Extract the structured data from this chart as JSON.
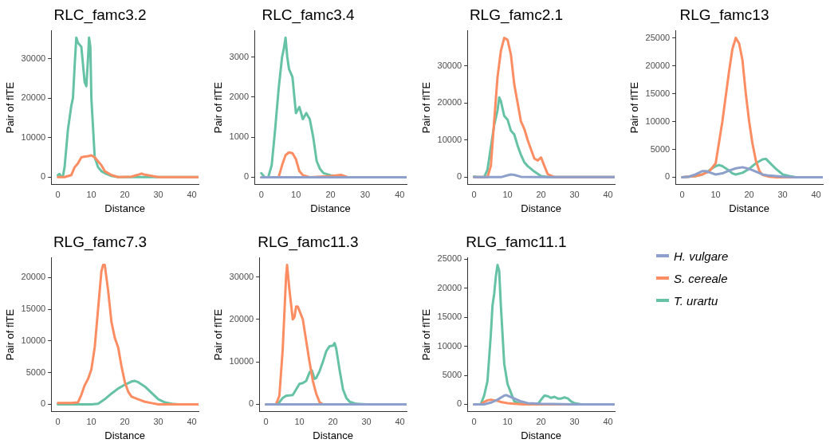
{
  "chart_data": [
    {
      "type": "line",
      "title": "RLC_famc3.2",
      "xlabel": "Distance",
      "ylabel": "Pair of flTE",
      "xlim": [
        -2,
        42
      ],
      "xticks": [
        0,
        10,
        20,
        30,
        40
      ],
      "ylim": [
        -1800,
        37000
      ],
      "yticks": [
        0,
        10000,
        20000,
        30000
      ],
      "grid": false,
      "legend": false,
      "series": [
        {
          "color": "#fc8d62",
          "x": [
            0,
            2,
            4,
            5,
            6,
            7,
            8,
            9,
            10,
            11,
            12,
            13,
            14,
            16,
            18,
            22,
            24,
            25,
            26,
            28,
            30,
            42
          ],
          "values": [
            0,
            0,
            500,
            2500,
            3500,
            5000,
            5200,
            5300,
            5500,
            5000,
            4000,
            3000,
            1500,
            500,
            0,
            100,
            600,
            900,
            600,
            300,
            0,
            0
          ]
        },
        {
          "color": "#66c2a5",
          "x": [
            0,
            0.5,
            1,
            1.5,
            2,
            3,
            4,
            4.5,
            5,
            5.5,
            6,
            7,
            8,
            8.5,
            9,
            9.3,
            9.7,
            10,
            11,
            12,
            13,
            14,
            16,
            18,
            20,
            30,
            42
          ],
          "values": [
            500,
            800,
            100,
            200,
            2500,
            12000,
            18000,
            20000,
            28000,
            35300,
            34000,
            33000,
            24000,
            23000,
            30000,
            35300,
            33000,
            20000,
            5000,
            2500,
            1500,
            1000,
            300,
            0,
            0,
            0,
            0
          ]
        }
      ]
    },
    {
      "type": "line",
      "title": "RLC_famc3.4",
      "xlabel": "Distance",
      "ylabel": "Pair of flTE",
      "xlim": [
        -2,
        42
      ],
      "xticks": [
        0,
        10,
        20,
        30,
        40
      ],
      "ylim": [
        -175,
        3650
      ],
      "yticks": [
        0,
        1000,
        2000,
        3000
      ],
      "grid": false,
      "legend": false,
      "series": [
        {
          "color": "#8da0cb",
          "x": [
            0,
            10,
            20,
            30,
            42
          ],
          "values": [
            0,
            0,
            0,
            0,
            0
          ]
        },
        {
          "color": "#fc8d62",
          "x": [
            0,
            5,
            6,
            7,
            8,
            9,
            10,
            11,
            12,
            14,
            20,
            23,
            25,
            42
          ],
          "values": [
            0,
            0,
            300,
            550,
            620,
            600,
            450,
            150,
            50,
            0,
            30,
            60,
            0,
            0
          ]
        },
        {
          "color": "#66c2a5",
          "x": [
            0,
            1,
            2,
            3,
            4,
            5,
            6,
            6.5,
            7,
            7.5,
            8,
            9,
            10,
            11,
            12,
            13,
            14,
            15,
            16,
            17,
            18,
            20,
            22,
            25,
            42
          ],
          "values": [
            100,
            0,
            0,
            300,
            1200,
            2200,
            3000,
            3200,
            3480,
            3000,
            2700,
            2500,
            1600,
            1750,
            1450,
            1600,
            1450,
            1000,
            400,
            200,
            100,
            50,
            30,
            0,
            0
          ]
        }
      ]
    },
    {
      "type": "line",
      "title": "RLG_famc2.1",
      "xlabel": "Distance",
      "ylabel": "Pair of flTE",
      "xlim": [
        -2,
        42
      ],
      "xticks": [
        0,
        10,
        20,
        30,
        40
      ],
      "ylim": [
        -1900,
        39400
      ],
      "yticks": [
        0,
        10000,
        20000,
        30000
      ],
      "grid": false,
      "legend": false,
      "series": [
        {
          "color": "#8da0cb",
          "x": [
            0,
            8,
            10,
            11,
            12,
            14,
            20,
            42
          ],
          "values": [
            0,
            0,
            500,
            700,
            600,
            100,
            0,
            0
          ]
        },
        {
          "color": "#fc8d62",
          "x": [
            0,
            4,
            5,
            6,
            7,
            8,
            9,
            10,
            11,
            12,
            13,
            14,
            15,
            16,
            17,
            18,
            19,
            20,
            21,
            22,
            24,
            26,
            42
          ],
          "values": [
            0,
            0,
            3000,
            15000,
            27000,
            34000,
            37500,
            37000,
            33000,
            25000,
            20000,
            15000,
            13000,
            10000,
            7500,
            5000,
            4500,
            5300,
            3000,
            800,
            0,
            0,
            0
          ]
        },
        {
          "color": "#66c2a5",
          "x": [
            0,
            1,
            3,
            4,
            5,
            6,
            7,
            7.5,
            8,
            9,
            10,
            11,
            12,
            13,
            14,
            15,
            16,
            18,
            20,
            22,
            42
          ],
          "values": [
            200,
            0,
            0,
            2000,
            8000,
            14000,
            18000,
            21500,
            20500,
            16500,
            15500,
            12500,
            11500,
            8500,
            6000,
            4000,
            3000,
            1500,
            300,
            0,
            0
          ]
        }
      ]
    },
    {
      "type": "line",
      "title": "RLG_famc13",
      "xlabel": "Distance",
      "ylabel": "Pair of flTE",
      "xlim": [
        -2,
        42
      ],
      "xticks": [
        0,
        10,
        20,
        30,
        40
      ],
      "ylim": [
        -1250,
        26250
      ],
      "yticks": [
        0,
        5000,
        10000,
        15000,
        20000,
        25000
      ],
      "grid": false,
      "legend": false,
      "series": [
        {
          "color": "#8da0cb",
          "x": [
            0,
            2,
            4,
            6,
            7,
            8,
            10,
            12,
            14,
            16,
            18,
            20,
            22,
            24,
            26,
            30,
            34,
            42
          ],
          "values": [
            0,
            100,
            500,
            1100,
            1100,
            900,
            500,
            700,
            1200,
            1600,
            1800,
            1500,
            1000,
            500,
            300,
            100,
            0,
            0
          ]
        },
        {
          "color": "#fc8d62",
          "x": [
            0,
            4,
            6,
            8,
            10,
            12,
            14,
            15,
            16,
            17,
            18,
            19,
            20,
            21,
            22,
            23,
            24,
            26,
            28,
            42
          ],
          "values": [
            0,
            200,
            500,
            1000,
            2500,
            10000,
            19000,
            23000,
            25000,
            24000,
            21000,
            15000,
            10000,
            6000,
            3000,
            1200,
            400,
            100,
            0,
            0
          ]
        },
        {
          "color": "#66c2a5",
          "x": [
            0,
            4,
            6,
            8,
            10,
            11,
            12,
            14,
            15,
            16,
            18,
            20,
            22,
            24,
            25,
            26,
            28,
            30,
            32,
            34,
            42
          ],
          "values": [
            0,
            200,
            500,
            1200,
            2000,
            2200,
            2000,
            1200,
            700,
            500,
            800,
            1500,
            2500,
            3200,
            3300,
            2700,
            1500,
            500,
            200,
            0,
            0
          ]
        }
      ]
    },
    {
      "type": "line",
      "title": "RLG_famc7.3",
      "xlabel": "Distance",
      "ylabel": "Pair of flTE",
      "xlim": [
        -2,
        42
      ],
      "xticks": [
        0,
        10,
        20,
        30,
        40
      ],
      "ylim": [
        -1100,
        23100
      ],
      "yticks": [
        0,
        5000,
        10000,
        15000,
        20000
      ],
      "grid": false,
      "legend": false,
      "series": [
        {
          "color": "#fc8d62",
          "x": [
            0,
            4,
            6,
            7,
            8,
            9,
            10,
            11,
            12,
            13,
            13.5,
            14,
            15,
            16,
            17,
            18,
            19,
            20,
            21,
            22,
            24,
            26,
            28,
            30,
            42
          ],
          "values": [
            200,
            200,
            300,
            1500,
            3000,
            4000,
            5500,
            9000,
            15000,
            21000,
            22000,
            22000,
            18000,
            13000,
            10500,
            9000,
            6000,
            3500,
            2000,
            1200,
            800,
            400,
            200,
            0,
            0
          ]
        },
        {
          "color": "#66c2a5",
          "x": [
            0,
            10,
            12,
            14,
            16,
            18,
            20,
            22,
            23,
            24,
            26,
            28,
            30,
            32,
            34,
            36,
            42
          ],
          "values": [
            0,
            0,
            100,
            800,
            1700,
            2500,
            3100,
            3600,
            3700,
            3500,
            2800,
            1800,
            800,
            300,
            100,
            0,
            0
          ]
        }
      ]
    },
    {
      "type": "line",
      "title": "RLG_famc11.3",
      "xlabel": "Distance",
      "ylabel": "Pair of flTE",
      "xlim": [
        -2,
        42
      ],
      "xticks": [
        0,
        10,
        20,
        30,
        40
      ],
      "ylim": [
        -1650,
        34450
      ],
      "yticks": [
        0,
        10000,
        20000,
        30000
      ],
      "grid": false,
      "legend": false,
      "series": [
        {
          "color": "#8da0cb",
          "x": [
            0,
            10,
            20,
            30,
            42
          ],
          "values": [
            0,
            0,
            0,
            0,
            0
          ]
        },
        {
          "color": "#fc8d62",
          "x": [
            0,
            3,
            4,
            5,
            6,
            6.3,
            7,
            8,
            8.5,
            9,
            9.5,
            10,
            11,
            12,
            13,
            14,
            15,
            16,
            17,
            20,
            42
          ],
          "values": [
            0,
            0,
            2000,
            13000,
            30000,
            32800,
            27000,
            20000,
            20500,
            23000,
            23000,
            22000,
            20000,
            15000,
            10000,
            5500,
            2500,
            500,
            0,
            0,
            0
          ]
        },
        {
          "color": "#66c2a5",
          "x": [
            0,
            3,
            4,
            5,
            6,
            8,
            9,
            10,
            11,
            12,
            13,
            13.7,
            14.5,
            15,
            16,
            17,
            18,
            19,
            20,
            20.5,
            21,
            22,
            23,
            24,
            25,
            27,
            30,
            42
          ],
          "values": [
            0,
            0,
            500,
            1500,
            2000,
            2200,
            3500,
            4800,
            5000,
            5500,
            7500,
            8000,
            6000,
            6200,
            7800,
            10000,
            12500,
            13700,
            13800,
            14400,
            13000,
            8000,
            3500,
            1500,
            600,
            100,
            0,
            0
          ]
        }
      ]
    },
    {
      "type": "line",
      "title": "RLG_famc11.1",
      "xlabel": "Distance",
      "ylabel": "Pair of flTE",
      "xlim": [
        -2,
        42
      ],
      "xticks": [
        0,
        10,
        20,
        30,
        40
      ],
      "ylim": [
        -1200,
        25200
      ],
      "yticks": [
        0,
        5000,
        10000,
        15000,
        20000,
        25000
      ],
      "grid": false,
      "legend": "right",
      "series": [
        {
          "name": "H. vulgare",
          "color": "#8da0cb",
          "x": [
            0,
            3,
            5,
            7,
            9,
            9.5,
            10,
            12,
            14,
            16,
            20,
            30,
            42
          ],
          "values": [
            0,
            0,
            300,
            800,
            1500,
            1600,
            1500,
            1000,
            500,
            200,
            100,
            0,
            0
          ]
        },
        {
          "name": "S. cereale",
          "color": "#fc8d62",
          "x": [
            0,
            2,
            3,
            4,
            5,
            6,
            7,
            8,
            10,
            12,
            15,
            20,
            42
          ],
          "values": [
            0,
            0,
            400,
            700,
            800,
            700,
            600,
            400,
            200,
            100,
            0,
            0,
            0
          ]
        },
        {
          "name": "T. urartu",
          "color": "#66c2a5",
          "x": [
            0,
            2,
            3,
            4,
            5,
            5.5,
            6,
            6.5,
            7,
            7.5,
            8,
            9,
            10,
            11,
            12,
            14,
            16,
            19,
            20,
            21,
            22,
            23,
            24,
            25,
            26,
            27,
            28,
            29,
            30,
            32,
            42
          ],
          "values": [
            0,
            0,
            1500,
            4000,
            12000,
            17000,
            19000,
            22000,
            24000,
            23000,
            17000,
            7000,
            3500,
            2000,
            500,
            100,
            0,
            0,
            800,
            1500,
            1400,
            1100,
            1300,
            1000,
            1000,
            1200,
            1000,
            500,
            200,
            0,
            0
          ]
        }
      ]
    }
  ]
}
